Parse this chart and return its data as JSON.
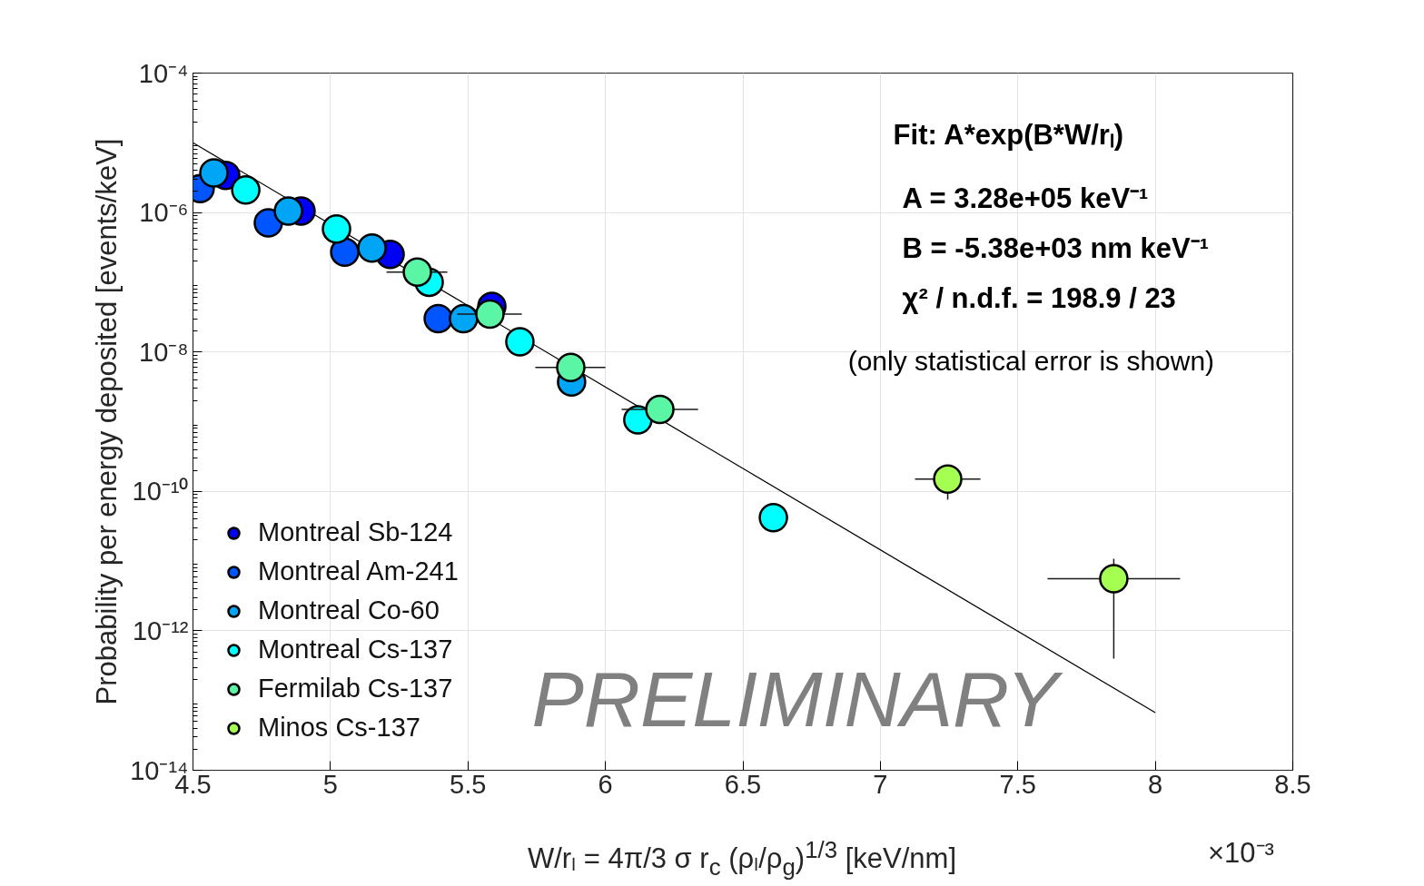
{
  "chart_data": {
    "type": "scatter",
    "xlabel": "W/rₗ = 4π/3 σ r$_{c}$ (ρₗ/ρ$_{g}$)$^{1/3}$ [keV/nm]",
    "ylabel": "Probability per energy deposited [events/keV]",
    "xlim": [
      4.5,
      8.5
    ],
    "xticks": [
      4.5,
      5,
      5.5,
      6,
      6.5,
      7,
      7.5,
      8,
      8.5
    ],
    "ylim": [
      1e-14,
      0.0001
    ],
    "yticks": [
      {
        "value": 1e-14,
        "label": "10⁻¹⁴"
      },
      {
        "value": 1e-12,
        "label": "10⁻¹²"
      },
      {
        "value": 1e-10,
        "label": "10⁻¹⁰"
      },
      {
        "value": 1e-08,
        "label": "10⁻⁸"
      },
      {
        "value": 1e-06,
        "label": "10⁻⁶"
      },
      {
        "value": 0.0001,
        "label": "10⁻⁴"
      }
    ],
    "log": "y",
    "grid": true,
    "legend": "bottom left",
    "marker": "circle",
    "series": [
      {
        "name": "Montreal Sb-124",
        "color": "#0000f5",
        "x": [
          4.619,
          4.893,
          5.217,
          5.587
        ],
        "values": [
          3.4e-06,
          1.05e-06,
          2.5e-07,
          4.5e-08
        ]
      },
      {
        "name": "Montreal Am-241",
        "color": "#0055ff",
        "x": [
          4.526,
          4.774,
          5.052,
          5.392
        ],
        "values": [
          2.2e-06,
          7.1e-07,
          2.7e-07,
          3e-08
        ]
      },
      {
        "name": "Montreal Co-60",
        "color": "#00a5f5",
        "x": [
          4.576,
          4.847,
          5.151,
          5.484,
          5.877
        ],
        "values": [
          3.7e-06,
          1.05e-06,
          3.1e-07,
          3e-08,
          3.7e-09
        ]
      },
      {
        "name": "Montreal Cs-137",
        "color": "#00ffff",
        "x": [
          4.692,
          5.022,
          5.359,
          5.689,
          6.118,
          6.611
        ],
        "values": [
          2.1e-06,
          5.8e-07,
          1e-07,
          1.4e-08,
          1.06e-09,
          4.2e-11
        ]
      },
      {
        "name": "Fermilab Cs-137",
        "color": "#5af5a5",
        "x": [
          5.316,
          5.58,
          5.874,
          6.198
        ],
        "values": [
          1.4e-07,
          3.5e-08,
          6e-09,
          1.5e-09
        ],
        "xerrors": [
          [
            5.204,
            5.425
          ],
          [
            5.461,
            5.696
          ],
          [
            5.745,
            6.0
          ],
          [
            6.059,
            6.337
          ]
        ]
      },
      {
        "name": "Minos Cs-137",
        "color": "#a5ff50",
        "x": [
          7.245,
          7.849
        ],
        "values": [
          1.5e-10,
          5.6e-12
        ],
        "errors": [
          [
            7.6e-11,
            2.2e-10
          ],
          [
            4e-13,
            1.08e-11
          ]
        ],
        "xerrors": [
          [
            7.126,
            7.364
          ],
          [
            7.608,
            8.09
          ]
        ]
      },
      {
        "type": "line",
        "marker": "none",
        "color": "#000000",
        "x": [
          4.5,
          8.0
        ],
        "values": [
          1e-05,
          6.7e-14
        ]
      }
    ],
    "annotations": [
      "Fit: A*exp(B*W/rₗ)",
      "A = 3.28e+05 keV⁻¹",
      "B = -5.38e+03 nm keV⁻¹",
      "χ² / n.d.f. = 198.9 / 23",
      "(only statistical error is shown)",
      "PRELIMINARY",
      "×10⁻³"
    ]
  }
}
